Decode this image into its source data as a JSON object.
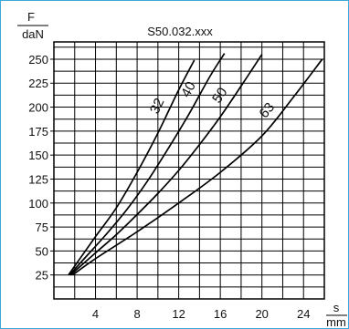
{
  "chart_data": {
    "type": "line",
    "title": "S50.032.xxx",
    "ylabel_top": "F",
    "ylabel_bottom": "daN",
    "xlabel_top": "s",
    "xlabel_bottom": "mm",
    "xlim": [
      0,
      26
    ],
    "ylim": [
      0,
      268
    ],
    "x_ticks": [
      4,
      8,
      12,
      16,
      20,
      24
    ],
    "y_ticks": [
      25,
      50,
      75,
      100,
      125,
      150,
      175,
      200,
      225,
      250
    ],
    "grid": true,
    "grid_x_step": 2,
    "grid_y_step": 12.5,
    "series": [
      {
        "name": "32",
        "points": [
          [
            1.4,
            25
          ],
          [
            2.5,
            42
          ],
          [
            4,
            65
          ],
          [
            6,
            95
          ],
          [
            8,
            132
          ],
          [
            10,
            173
          ],
          [
            12,
            218
          ],
          [
            13.5,
            249
          ]
        ]
      },
      {
        "name": "40",
        "points": [
          [
            1.5,
            25
          ],
          [
            3,
            43
          ],
          [
            5,
            67
          ],
          [
            7,
            93
          ],
          [
            9,
            123
          ],
          [
            11,
            157
          ],
          [
            13,
            193
          ],
          [
            15,
            232
          ],
          [
            16.4,
            256
          ]
        ]
      },
      {
        "name": "50",
        "points": [
          [
            1.6,
            25
          ],
          [
            4,
            48
          ],
          [
            6,
            67
          ],
          [
            8,
            88
          ],
          [
            10,
            110
          ],
          [
            12,
            134
          ],
          [
            14,
            161
          ],
          [
            16,
            190
          ],
          [
            18,
            222
          ],
          [
            20,
            255
          ]
        ]
      },
      {
        "name": "63",
        "points": [
          [
            1.8,
            25
          ],
          [
            4,
            42
          ],
          [
            8,
            70
          ],
          [
            12,
            100
          ],
          [
            16,
            132
          ],
          [
            20,
            170
          ],
          [
            23,
            210
          ],
          [
            25.8,
            250
          ]
        ]
      }
    ]
  }
}
